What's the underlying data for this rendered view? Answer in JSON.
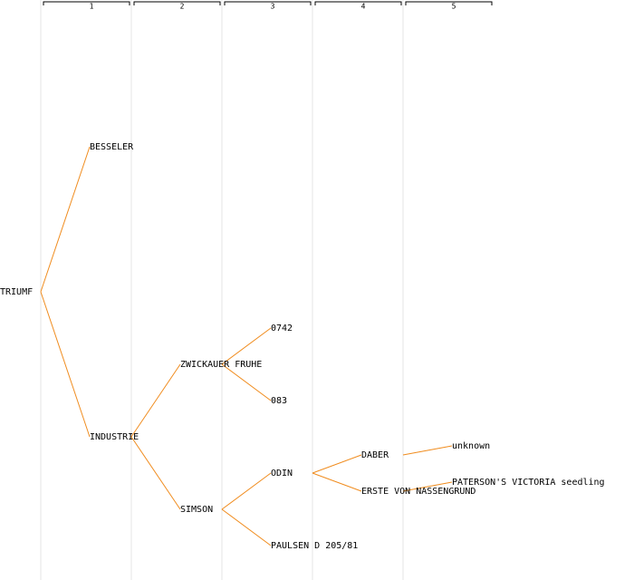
{
  "columns": [
    "1",
    "2",
    "3",
    "4",
    "5"
  ],
  "nodes": [
    {
      "label": "TRIUMF"
    },
    {
      "label": "BESSELER"
    },
    {
      "label": "INDUSTRIE"
    },
    {
      "label": "ZWICKAUER FRUHE"
    },
    {
      "label": "SIMSON"
    },
    {
      "label": "0742"
    },
    {
      "label": "083"
    },
    {
      "label": "ODIN"
    },
    {
      "label": "PAULSEN D 205/81"
    },
    {
      "label": "DABER"
    },
    {
      "label": "ERSTE VON NASSENGRUND"
    },
    {
      "label": "unknown"
    },
    {
      "label": "PATERSON'S VICTORIA seedling"
    }
  ]
}
